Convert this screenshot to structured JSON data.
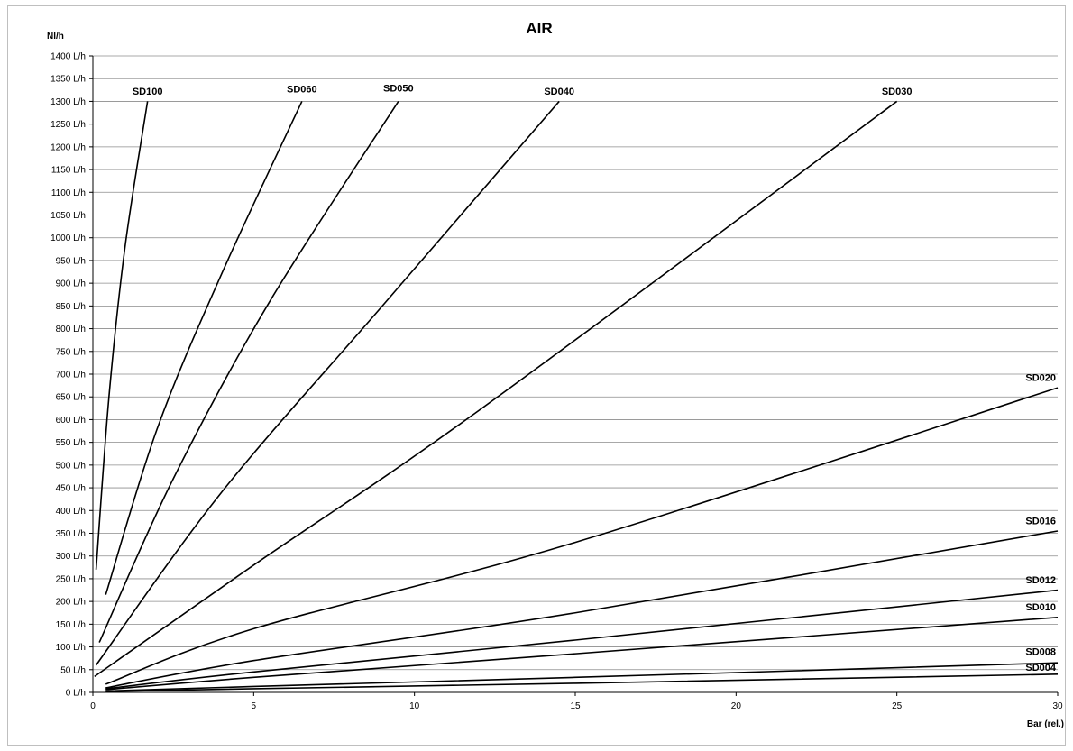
{
  "chart_data": {
    "type": "line",
    "title": "AIR",
    "ylabel": "Nl/h",
    "xlabel": "Bar (rel.)",
    "xlim": [
      0,
      30
    ],
    "ylim": [
      0,
      1400
    ],
    "x_ticks": [
      0,
      5,
      10,
      15,
      20,
      25,
      30
    ],
    "y_ticks": [
      "0 L/h",
      "50 L/h",
      "100 L/h",
      "150 L/h",
      "200 L/h",
      "250 L/h",
      "300 L/h",
      "350 L/h",
      "400 L/h",
      "450 L/h",
      "500 L/h",
      "550 L/h",
      "600 L/h",
      "650 L/h",
      "700 L/h",
      "750 L/h",
      "800 L/h",
      "850 L/h",
      "900 L/h",
      "950 L/h",
      "1000 L/h",
      "1050 L/h",
      "1100 L/h",
      "1150 L/h",
      "1200 L/h",
      "1250 L/h",
      "1300 L/h",
      "1350 L/h",
      "1400 L/h"
    ],
    "y_tick_values": [
      0,
      50,
      100,
      150,
      200,
      250,
      300,
      350,
      400,
      450,
      500,
      550,
      600,
      650,
      700,
      750,
      800,
      850,
      900,
      950,
      1000,
      1050,
      1100,
      1150,
      1200,
      1250,
      1300,
      1350,
      1400
    ],
    "grid": true,
    "line_color": "#000000",
    "grid_color": "#8c8c8c",
    "series": [
      {
        "name": "SD100",
        "x": [
          0.1,
          0.5,
          1.0,
          1.7
        ],
        "y": [
          270,
          650,
          980,
          1300
        ]
      },
      {
        "name": "SD060",
        "x": [
          0.4,
          2.0,
          4.0,
          6.5
        ],
        "y": [
          215,
          580,
          920,
          1300
        ]
      },
      {
        "name": "SD050",
        "x": [
          0.2,
          2.5,
          5.5,
          9.5
        ],
        "y": [
          110,
          470,
          860,
          1300
        ]
      },
      {
        "name": "SD040",
        "x": [
          0.1,
          4.0,
          9.0,
          14.5
        ],
        "y": [
          60,
          440,
          850,
          1300
        ]
      },
      {
        "name": "SD030",
        "x": [
          0.05,
          5.0,
          12.0,
          25.0
        ],
        "y": [
          35,
          280,
          620,
          1300
        ]
      },
      {
        "name": "SD020",
        "x": [
          0.4,
          5.0,
          15.0,
          30.0
        ],
        "y": [
          18,
          140,
          330,
          670
        ]
      },
      {
        "name": "SD016",
        "x": [
          0.4,
          5.0,
          15.0,
          30.0
        ],
        "y": [
          10,
          70,
          175,
          355
        ]
      },
      {
        "name": "SD012",
        "x": [
          0.4,
          5.0,
          15.0,
          30.0
        ],
        "y": [
          8,
          45,
          115,
          225
        ]
      },
      {
        "name": "SD010",
        "x": [
          0.4,
          5.0,
          15.0,
          30.0
        ],
        "y": [
          6,
          33,
          85,
          165
        ]
      },
      {
        "name": "SD008",
        "x": [
          0.4,
          5.0,
          15.0,
          30.0
        ],
        "y": [
          3,
          13,
          33,
          65
        ]
      },
      {
        "name": "SD004",
        "x": [
          0.4,
          5.0,
          15.0,
          30.0
        ],
        "y": [
          2,
          8,
          20,
          40
        ]
      }
    ],
    "label_positions": {
      "SD100": [
        1.7,
        1315
      ],
      "SD060": [
        6.5,
        1320
      ],
      "SD050": [
        9.5,
        1322
      ],
      "SD040": [
        14.5,
        1315
      ],
      "SD030": [
        25.0,
        1315
      ],
      "SD020": [
        30.0,
        685
      ],
      "SD016": [
        30.0,
        370
      ],
      "SD012": [
        30.0,
        240
      ],
      "SD010": [
        30.0,
        180
      ],
      "SD008": [
        30.0,
        82
      ],
      "SD004": [
        30.0,
        48
      ]
    }
  }
}
